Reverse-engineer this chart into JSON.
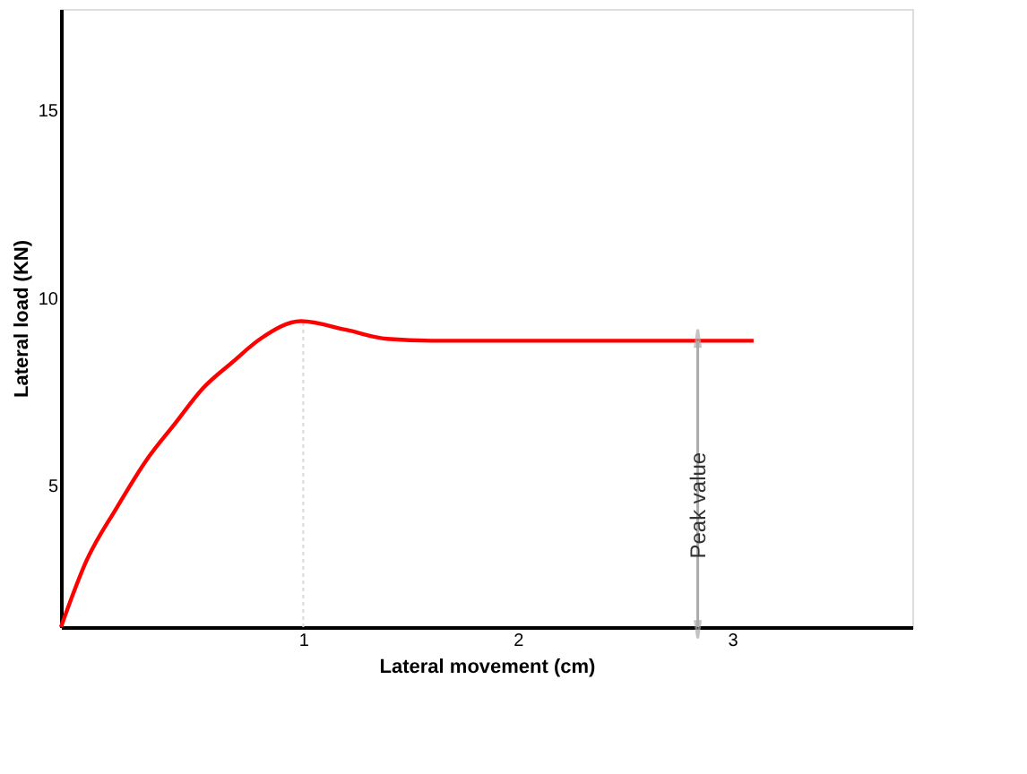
{
  "chart_data": {
    "type": "line",
    "xlabel": "Lateral movement (cm)",
    "ylabel": "Lateral load (KN)",
    "x": [
      -0.13,
      -0.01,
      0.13,
      0.27,
      0.4,
      0.53,
      0.67,
      0.8,
      0.99,
      1.2,
      1.39,
      1.6,
      3.1
    ],
    "series": [
      {
        "color": "#ff0000",
        "values": [
          1.23,
          3.01,
          4.41,
          5.69,
          6.64,
          7.58,
          8.29,
          8.91,
          9.38,
          9.15,
          8.91,
          8.86,
          8.86
        ]
      }
    ],
    "xlim": [
      -0.13,
      3.84
    ],
    "ylim": [
      1.23,
      17.7
    ],
    "xticks": [
      {
        "value": 1,
        "label": "1"
      },
      {
        "value": 2,
        "label": "2"
      },
      {
        "value": 3,
        "label": "3"
      }
    ],
    "yticks": [
      5,
      10,
      15
    ],
    "ref_lines": [
      {
        "axis": "x",
        "value": 1,
        "color": "#d9d9d9",
        "line_style": "dotted"
      }
    ],
    "annotations": [
      "Peak value"
    ],
    "grid": false,
    "legend": false,
    "marker": "none",
    "line_style": "solid"
  }
}
